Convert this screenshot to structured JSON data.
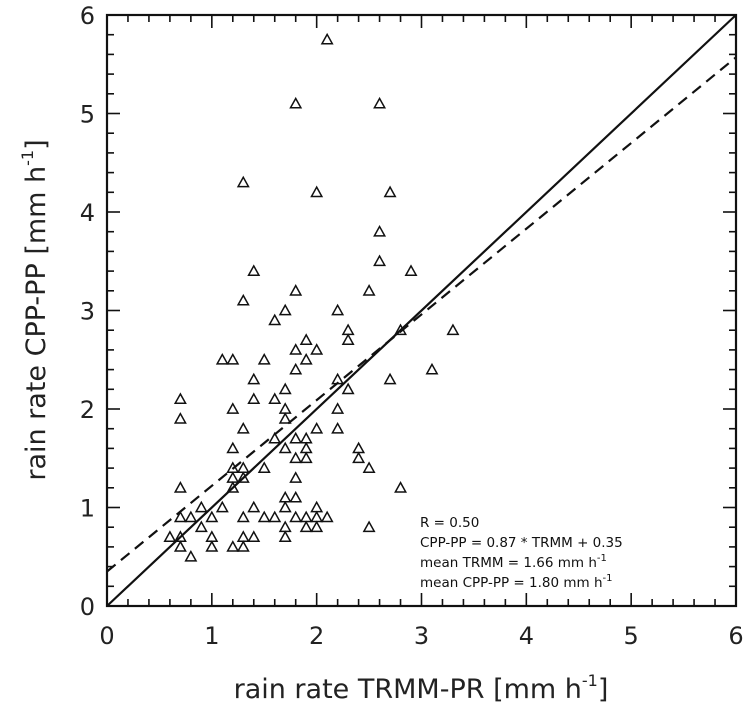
{
  "chart_data": {
    "type": "scatter",
    "xlabel": "rain rate TRMM-PR [mm h",
    "xlabel_sup": "-1",
    "xlabel_end": "]",
    "ylabel": "rain rate CPP-PP [mm h",
    "ylabel_sup": "-1",
    "ylabel_end": "]",
    "xlim": [
      0,
      6
    ],
    "ylim": [
      0,
      6
    ],
    "xticks": [
      "0",
      "1",
      "2",
      "3",
      "4",
      "5",
      "6"
    ],
    "yticks": [
      "0",
      "1",
      "2",
      "3",
      "4",
      "5",
      "6"
    ],
    "marker": "open-triangle",
    "points": [
      [
        2.1,
        5.75
      ],
      [
        1.8,
        5.1
      ],
      [
        2.6,
        5.1
      ],
      [
        1.3,
        4.3
      ],
      [
        2.0,
        4.2
      ],
      [
        2.7,
        4.2
      ],
      [
        2.6,
        3.8
      ],
      [
        2.6,
        3.5
      ],
      [
        1.4,
        3.4
      ],
      [
        2.9,
        3.4
      ],
      [
        1.8,
        3.2
      ],
      [
        2.5,
        3.2
      ],
      [
        1.3,
        3.1
      ],
      [
        1.7,
        3.0
      ],
      [
        2.2,
        3.0
      ],
      [
        1.6,
        2.9
      ],
      [
        3.3,
        2.8
      ],
      [
        2.3,
        2.8
      ],
      [
        2.8,
        2.8
      ],
      [
        1.9,
        2.7
      ],
      [
        2.3,
        2.7
      ],
      [
        1.8,
        2.6
      ],
      [
        2.0,
        2.6
      ],
      [
        1.9,
        2.5
      ],
      [
        1.1,
        2.5
      ],
      [
        1.2,
        2.5
      ],
      [
        1.5,
        2.5
      ],
      [
        1.8,
        2.4
      ],
      [
        3.1,
        2.4
      ],
      [
        1.4,
        2.3
      ],
      [
        2.2,
        2.3
      ],
      [
        2.7,
        2.3
      ],
      [
        1.7,
        2.2
      ],
      [
        2.3,
        2.2
      ],
      [
        1.4,
        2.1
      ],
      [
        1.6,
        2.1
      ],
      [
        0.7,
        2.1
      ],
      [
        1.2,
        2.0
      ],
      [
        1.7,
        2.0
      ],
      [
        2.2,
        2.0
      ],
      [
        0.7,
        1.9
      ],
      [
        1.7,
        1.9
      ],
      [
        1.3,
        1.8
      ],
      [
        2.0,
        1.8
      ],
      [
        2.2,
        1.8
      ],
      [
        1.6,
        1.7
      ],
      [
        1.8,
        1.7
      ],
      [
        1.9,
        1.7
      ],
      [
        1.2,
        1.6
      ],
      [
        1.7,
        1.6
      ],
      [
        1.9,
        1.6
      ],
      [
        2.4,
        1.6
      ],
      [
        1.8,
        1.5
      ],
      [
        1.9,
        1.5
      ],
      [
        2.4,
        1.5
      ],
      [
        1.5,
        1.4
      ],
      [
        1.2,
        1.4
      ],
      [
        1.3,
        1.4
      ],
      [
        2.5,
        1.4
      ],
      [
        1.2,
        1.3
      ],
      [
        1.3,
        1.3
      ],
      [
        1.8,
        1.3
      ],
      [
        0.7,
        1.2
      ],
      [
        1.2,
        1.2
      ],
      [
        2.8,
        1.2
      ],
      [
        1.7,
        1.1
      ],
      [
        1.8,
        1.1
      ],
      [
        0.9,
        1.0
      ],
      [
        1.4,
        1.0
      ],
      [
        1.7,
        1.0
      ],
      [
        2.0,
        1.0
      ],
      [
        1.1,
        1.0
      ],
      [
        0.8,
        0.9
      ],
      [
        1.0,
        0.9
      ],
      [
        1.3,
        0.9
      ],
      [
        1.5,
        0.9
      ],
      [
        1.6,
        0.9
      ],
      [
        1.8,
        0.9
      ],
      [
        1.9,
        0.9
      ],
      [
        2.0,
        0.9
      ],
      [
        2.1,
        0.9
      ],
      [
        0.7,
        0.9
      ],
      [
        0.9,
        0.8
      ],
      [
        1.7,
        0.8
      ],
      [
        1.9,
        0.8
      ],
      [
        2.0,
        0.8
      ],
      [
        2.5,
        0.8
      ],
      [
        0.6,
        0.7
      ],
      [
        0.7,
        0.7
      ],
      [
        1.0,
        0.7
      ],
      [
        1.3,
        0.7
      ],
      [
        1.4,
        0.7
      ],
      [
        1.7,
        0.7
      ],
      [
        0.7,
        0.6
      ],
      [
        1.0,
        0.6
      ],
      [
        1.2,
        0.6
      ],
      [
        1.3,
        0.6
      ],
      [
        0.8,
        0.5
      ]
    ],
    "lines": [
      {
        "style": "solid",
        "slope": 1.0,
        "intercept": 0.0
      },
      {
        "style": "dashed",
        "slope": 0.87,
        "intercept": 0.35
      }
    ],
    "annotations": [
      {
        "text": "R = 0.50"
      },
      {
        "text": "CPP-PP =  0.87 * TRMM +  0.35"
      },
      {
        "text": "mean TRMM = 1.66 mm h",
        "sup": "-1"
      },
      {
        "text": "mean CPP-PP = 1.80 mm h",
        "sup": "-1"
      }
    ]
  }
}
